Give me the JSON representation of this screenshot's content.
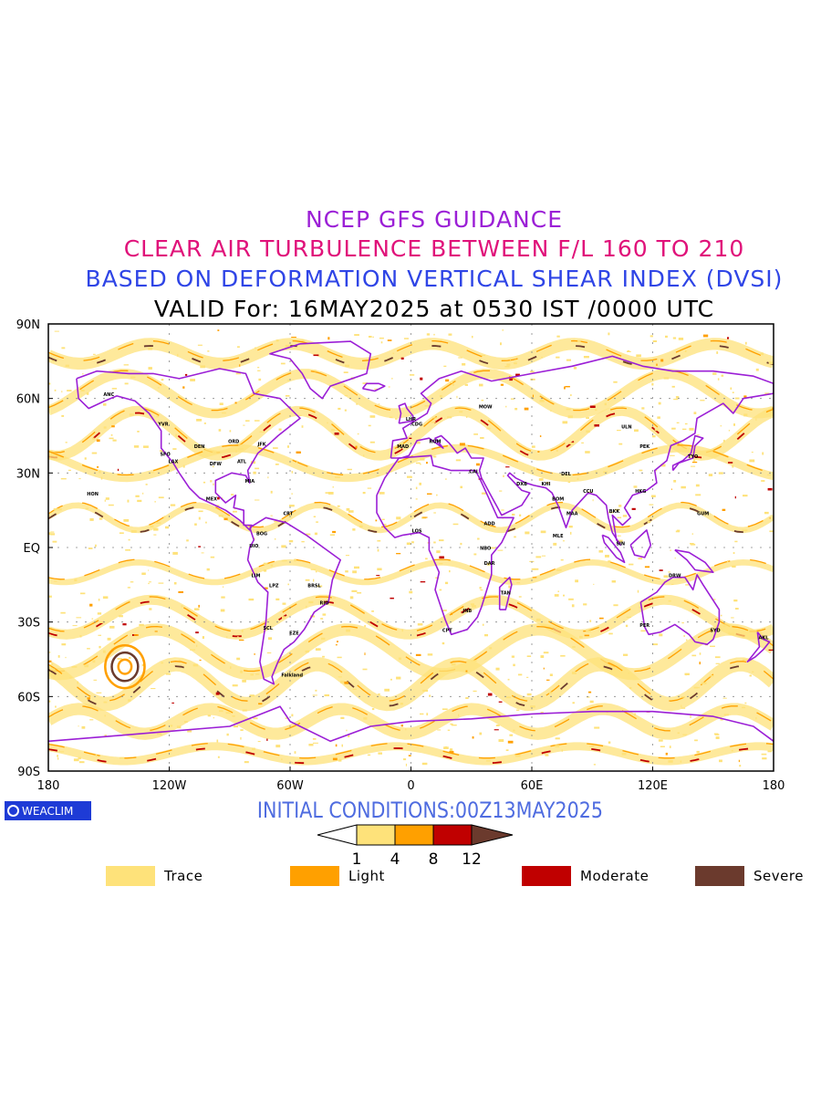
{
  "titles": {
    "line1": "NCEP GFS GUIDANCE",
    "line2": "CLEAR AIR TURBULENCE BETWEEN F/L 160 TO 210",
    "line3": "BASED ON DEFORMATION VERTICAL SHEAR INDEX (DVSI)",
    "line4": "VALID For: 16MAY2025 at 0530 IST /0000 UTC"
  },
  "colors": {
    "line1": "#9b1fd6",
    "line2": "#e0127a",
    "line3": "#2f45e6",
    "line4": "#000000",
    "coast": "#9b1fd6",
    "trace": "#fee27a",
    "light": "#ffa000",
    "moderate": "#c00000",
    "severe": "#6b3a2d"
  },
  "map": {
    "lat_labels": [
      "90N",
      "60N",
      "30N",
      "EQ",
      "30S",
      "60S",
      "90S"
    ],
    "lon_labels": [
      "180",
      "120W",
      "60W",
      "0",
      "60E",
      "120E",
      "180"
    ],
    "stations": [
      {
        "id": "ANC",
        "lon": -150,
        "lat": 61
      },
      {
        "id": "YVR",
        "lon": -123,
        "lat": 49
      },
      {
        "id": "SFO",
        "lon": -122,
        "lat": 37
      },
      {
        "id": "LAX",
        "lon": -118,
        "lat": 34
      },
      {
        "id": "DEN",
        "lon": -105,
        "lat": 40
      },
      {
        "id": "DFW",
        "lon": -97,
        "lat": 33
      },
      {
        "id": "ORD",
        "lon": -88,
        "lat": 42
      },
      {
        "id": "ATL",
        "lon": -84,
        "lat": 34
      },
      {
        "id": "JFK",
        "lon": -74,
        "lat": 41
      },
      {
        "id": "MIA",
        "lon": -80,
        "lat": 26
      },
      {
        "id": "MEX",
        "lon": -99,
        "lat": 19
      },
      {
        "id": "HON",
        "lon": -158,
        "lat": 21
      },
      {
        "id": "BOG",
        "lon": -74,
        "lat": 5
      },
      {
        "id": "UIO",
        "lon": -78,
        "lat": 0
      },
      {
        "id": "LIM",
        "lon": -77,
        "lat": -12
      },
      {
        "id": "LPZ",
        "lon": -68,
        "lat": -16
      },
      {
        "id": "BRSL",
        "lon": -48,
        "lat": -16
      },
      {
        "id": "SCL",
        "lon": -71,
        "lat": -33
      },
      {
        "id": "EZE",
        "lon": -58,
        "lat": -35
      },
      {
        "id": "RIO",
        "lon": -43,
        "lat": -23
      },
      {
        "id": "CRT",
        "lon": -61,
        "lat": 13
      },
      {
        "id": "Falkland",
        "lon": -59,
        "lat": -52
      },
      {
        "id": "LHR",
        "lon": 0,
        "lat": 51
      },
      {
        "id": "MAD",
        "lon": -4,
        "lat": 40
      },
      {
        "id": "CDG",
        "lon": 3,
        "lat": 49
      },
      {
        "id": "ROM",
        "lon": 12,
        "lat": 42
      },
      {
        "id": "MOW",
        "lon": 37,
        "lat": 56
      },
      {
        "id": "CAI",
        "lon": 31,
        "lat": 30
      },
      {
        "id": "DXB",
        "lon": 55,
        "lat": 25
      },
      {
        "id": "KHI",
        "lon": 67,
        "lat": 25
      },
      {
        "id": "DEL",
        "lon": 77,
        "lat": 29
      },
      {
        "id": "BOM",
        "lon": 73,
        "lat": 19
      },
      {
        "id": "MAA",
        "lon": 80,
        "lat": 13
      },
      {
        "id": "CCU",
        "lon": 88,
        "lat": 22
      },
      {
        "id": "MLE",
        "lon": 73,
        "lat": 4
      },
      {
        "id": "ADD",
        "lon": 39,
        "lat": 9
      },
      {
        "id": "NBO",
        "lon": 37,
        "lat": -1
      },
      {
        "id": "DAR",
        "lon": 39,
        "lat": -7
      },
      {
        "id": "JNB",
        "lon": 28,
        "lat": -26
      },
      {
        "id": "CPT",
        "lon": 18,
        "lat": -34
      },
      {
        "id": "LOS",
        "lon": 3,
        "lat": 6
      },
      {
        "id": "TAN",
        "lon": 47,
        "lat": -19
      },
      {
        "id": "SIN",
        "lon": 104,
        "lat": 1
      },
      {
        "id": "BKK",
        "lon": 101,
        "lat": 14
      },
      {
        "id": "HKG",
        "lon": 114,
        "lat": 22
      },
      {
        "id": "PEK",
        "lon": 116,
        "lat": 40
      },
      {
        "id": "TYO",
        "lon": 140,
        "lat": 36
      },
      {
        "id": "ULN",
        "lon": 107,
        "lat": 48
      },
      {
        "id": "DRW",
        "lon": 131,
        "lat": -12
      },
      {
        "id": "PER",
        "lon": 116,
        "lat": -32
      },
      {
        "id": "SYD",
        "lon": 151,
        "lat": -34
      },
      {
        "id": "GUM",
        "lon": 145,
        "lat": 13
      },
      {
        "id": "AKL",
        "lon": 175,
        "lat": -37
      }
    ]
  },
  "logo": {
    "text": "WEACLIM"
  },
  "initial_conditions": "INITIAL CONDITIONS:00Z13MAY2025",
  "colorbar": {
    "ticks": [
      "1",
      "4",
      "8",
      "12"
    ]
  },
  "legend": [
    {
      "label": "Trace",
      "color": "#fee27a"
    },
    {
      "label": "Light",
      "color": "#ffa000"
    },
    {
      "label": "Moderate",
      "color": "#c00000"
    },
    {
      "label": "Severe",
      "color": "#6b3a2d"
    }
  ]
}
